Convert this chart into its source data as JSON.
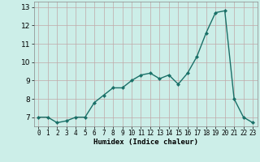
{
  "xlabel": "Humidex (Indice chaleur)",
  "ylabel": "",
  "x": [
    0,
    1,
    2,
    3,
    4,
    5,
    6,
    7,
    8,
    9,
    10,
    11,
    12,
    13,
    14,
    15,
    16,
    17,
    18,
    19,
    20,
    21,
    22,
    23
  ],
  "y": [
    7.0,
    7.0,
    6.7,
    6.8,
    7.0,
    7.0,
    7.8,
    8.2,
    8.6,
    8.6,
    9.0,
    9.3,
    9.4,
    9.1,
    9.3,
    8.8,
    9.4,
    10.3,
    11.6,
    12.7,
    12.8,
    8.0,
    7.0,
    6.7
  ],
  "line_color": "#1a7068",
  "marker": "D",
  "marker_size": 2.0,
  "background_color": "#cceee8",
  "grid_color": "#c0a8a8",
  "ylim": [
    6.5,
    13.3
  ],
  "yticks": [
    7,
    8,
    9,
    10,
    11,
    12,
    13
  ],
  "xlim": [
    -0.5,
    23.5
  ],
  "xticks": [
    0,
    1,
    2,
    3,
    4,
    5,
    6,
    7,
    8,
    9,
    10,
    11,
    12,
    13,
    14,
    15,
    16,
    17,
    18,
    19,
    20,
    21,
    22,
    23
  ],
  "tick_fontsize": 5.5,
  "xlabel_fontsize": 6.5,
  "linewidth": 1.0
}
